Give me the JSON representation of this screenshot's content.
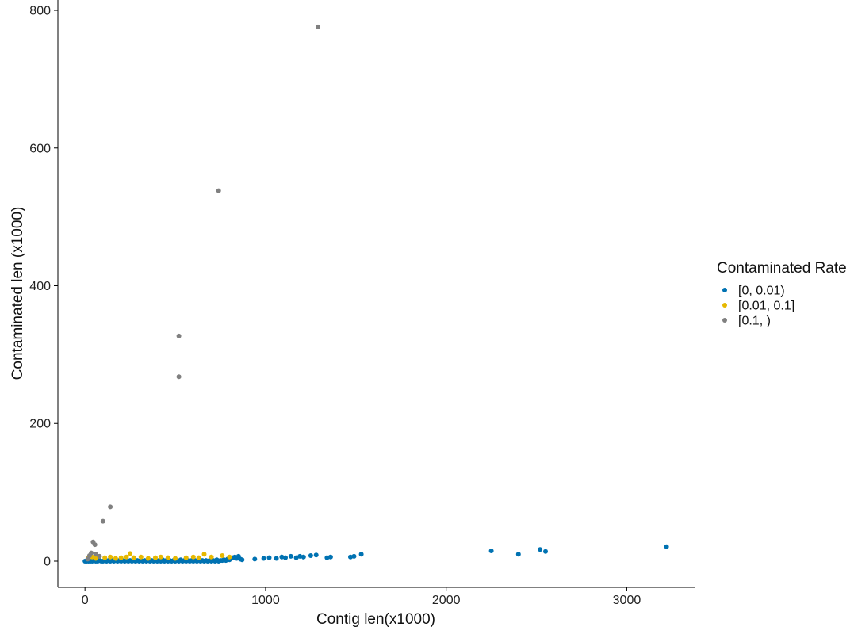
{
  "chart_data": {
    "type": "scatter",
    "title": "",
    "xlabel": "Contig len(x1000)",
    "ylabel": "Contaminated len (x1000)",
    "xlim": [
      -150,
      3380
    ],
    "ylim": [
      -38,
      815
    ],
    "xticks": [
      0,
      1000,
      2000,
      3000
    ],
    "yticks": [
      0,
      200,
      400,
      600,
      800
    ],
    "xtick_labels": [
      "0",
      "1000",
      "2000",
      "3000"
    ],
    "ytick_labels": [
      "0",
      "200",
      "400",
      "600",
      "800"
    ],
    "grid": false,
    "legend": {
      "title": "Contaminated Rate",
      "position": "right",
      "entries": [
        "[0, 0.01)",
        "[0.01, 0.1]",
        "[0.1, )"
      ]
    },
    "series": [
      {
        "name": "[0, 0.01)",
        "color": "#0072B2",
        "points": [
          [
            0,
            0
          ],
          [
            10,
            0
          ],
          [
            20,
            0
          ],
          [
            30,
            0
          ],
          [
            40,
            0
          ],
          [
            50,
            1
          ],
          [
            60,
            0
          ],
          [
            70,
            0
          ],
          [
            80,
            1
          ],
          [
            90,
            0
          ],
          [
            100,
            0
          ],
          [
            110,
            1
          ],
          [
            120,
            0
          ],
          [
            130,
            1
          ],
          [
            140,
            0
          ],
          [
            150,
            1
          ],
          [
            160,
            0
          ],
          [
            170,
            1
          ],
          [
            180,
            0
          ],
          [
            190,
            1
          ],
          [
            200,
            0
          ],
          [
            210,
            1
          ],
          [
            220,
            0
          ],
          [
            230,
            1
          ],
          [
            240,
            0
          ],
          [
            250,
            1
          ],
          [
            260,
            0
          ],
          [
            270,
            1
          ],
          [
            280,
            0
          ],
          [
            290,
            1
          ],
          [
            300,
            0
          ],
          [
            310,
            1
          ],
          [
            320,
            0
          ],
          [
            330,
            1
          ],
          [
            340,
            0
          ],
          [
            350,
            1
          ],
          [
            360,
            0
          ],
          [
            370,
            1
          ],
          [
            380,
            0
          ],
          [
            390,
            1
          ],
          [
            400,
            0
          ],
          [
            410,
            1
          ],
          [
            420,
            0
          ],
          [
            430,
            2
          ],
          [
            440,
            0
          ],
          [
            450,
            1
          ],
          [
            460,
            0
          ],
          [
            470,
            1
          ],
          [
            480,
            0
          ],
          [
            490,
            1
          ],
          [
            500,
            0
          ],
          [
            510,
            1
          ],
          [
            520,
            0
          ],
          [
            530,
            2
          ],
          [
            540,
            0
          ],
          [
            550,
            1
          ],
          [
            560,
            0
          ],
          [
            570,
            1
          ],
          [
            580,
            0
          ],
          [
            590,
            1
          ],
          [
            600,
            0
          ],
          [
            610,
            1
          ],
          [
            620,
            0
          ],
          [
            630,
            2
          ],
          [
            640,
            0
          ],
          [
            650,
            1
          ],
          [
            660,
            0
          ],
          [
            670,
            1
          ],
          [
            680,
            0
          ],
          [
            690,
            1
          ],
          [
            700,
            0
          ],
          [
            710,
            1
          ],
          [
            720,
            0
          ],
          [
            730,
            2
          ],
          [
            740,
            0
          ],
          [
            750,
            1
          ],
          [
            760,
            1
          ],
          [
            770,
            2
          ],
          [
            780,
            1
          ],
          [
            790,
            3
          ],
          [
            800,
            2
          ],
          [
            810,
            4
          ],
          [
            820,
            5
          ],
          [
            830,
            6
          ],
          [
            840,
            4
          ],
          [
            850,
            7
          ],
          [
            860,
            3
          ],
          [
            870,
            2
          ],
          [
            940,
            3
          ],
          [
            990,
            4
          ],
          [
            1020,
            5
          ],
          [
            1060,
            4
          ],
          [
            1090,
            6
          ],
          [
            1110,
            5
          ],
          [
            1140,
            7
          ],
          [
            1170,
            5
          ],
          [
            1190,
            7
          ],
          [
            1210,
            6
          ],
          [
            1250,
            8
          ],
          [
            1280,
            9
          ],
          [
            1340,
            5
          ],
          [
            1360,
            6
          ],
          [
            1470,
            6
          ],
          [
            1490,
            7
          ],
          [
            1530,
            10
          ],
          [
            2250,
            15
          ],
          [
            2400,
            10
          ],
          [
            2520,
            17
          ],
          [
            2550,
            14
          ],
          [
            3220,
            21
          ]
        ]
      },
      {
        "name": "[0.01, 0.1]",
        "color": "#E6B800",
        "points": [
          [
            20,
            5
          ],
          [
            40,
            6
          ],
          [
            60,
            4
          ],
          [
            80,
            7
          ],
          [
            110,
            5
          ],
          [
            140,
            6
          ],
          [
            170,
            4
          ],
          [
            200,
            5
          ],
          [
            230,
            6
          ],
          [
            250,
            11
          ],
          [
            270,
            5
          ],
          [
            310,
            6
          ],
          [
            350,
            4
          ],
          [
            390,
            5
          ],
          [
            420,
            6
          ],
          [
            460,
            5
          ],
          [
            500,
            4
          ],
          [
            560,
            5
          ],
          [
            600,
            6
          ],
          [
            630,
            5
          ],
          [
            660,
            10
          ],
          [
            700,
            6
          ],
          [
            760,
            8
          ],
          [
            800,
            6
          ]
        ]
      },
      {
        "name": "[0.1, )",
        "color": "#808080",
        "points": [
          [
            15,
            3
          ],
          [
            25,
            8
          ],
          [
            35,
            12
          ],
          [
            45,
            28
          ],
          [
            55,
            24
          ],
          [
            60,
            10
          ],
          [
            80,
            7
          ],
          [
            100,
            58
          ],
          [
            140,
            79
          ],
          [
            520,
            327
          ],
          [
            520,
            268
          ],
          [
            740,
            538
          ],
          [
            1290,
            776
          ]
        ]
      }
    ]
  }
}
